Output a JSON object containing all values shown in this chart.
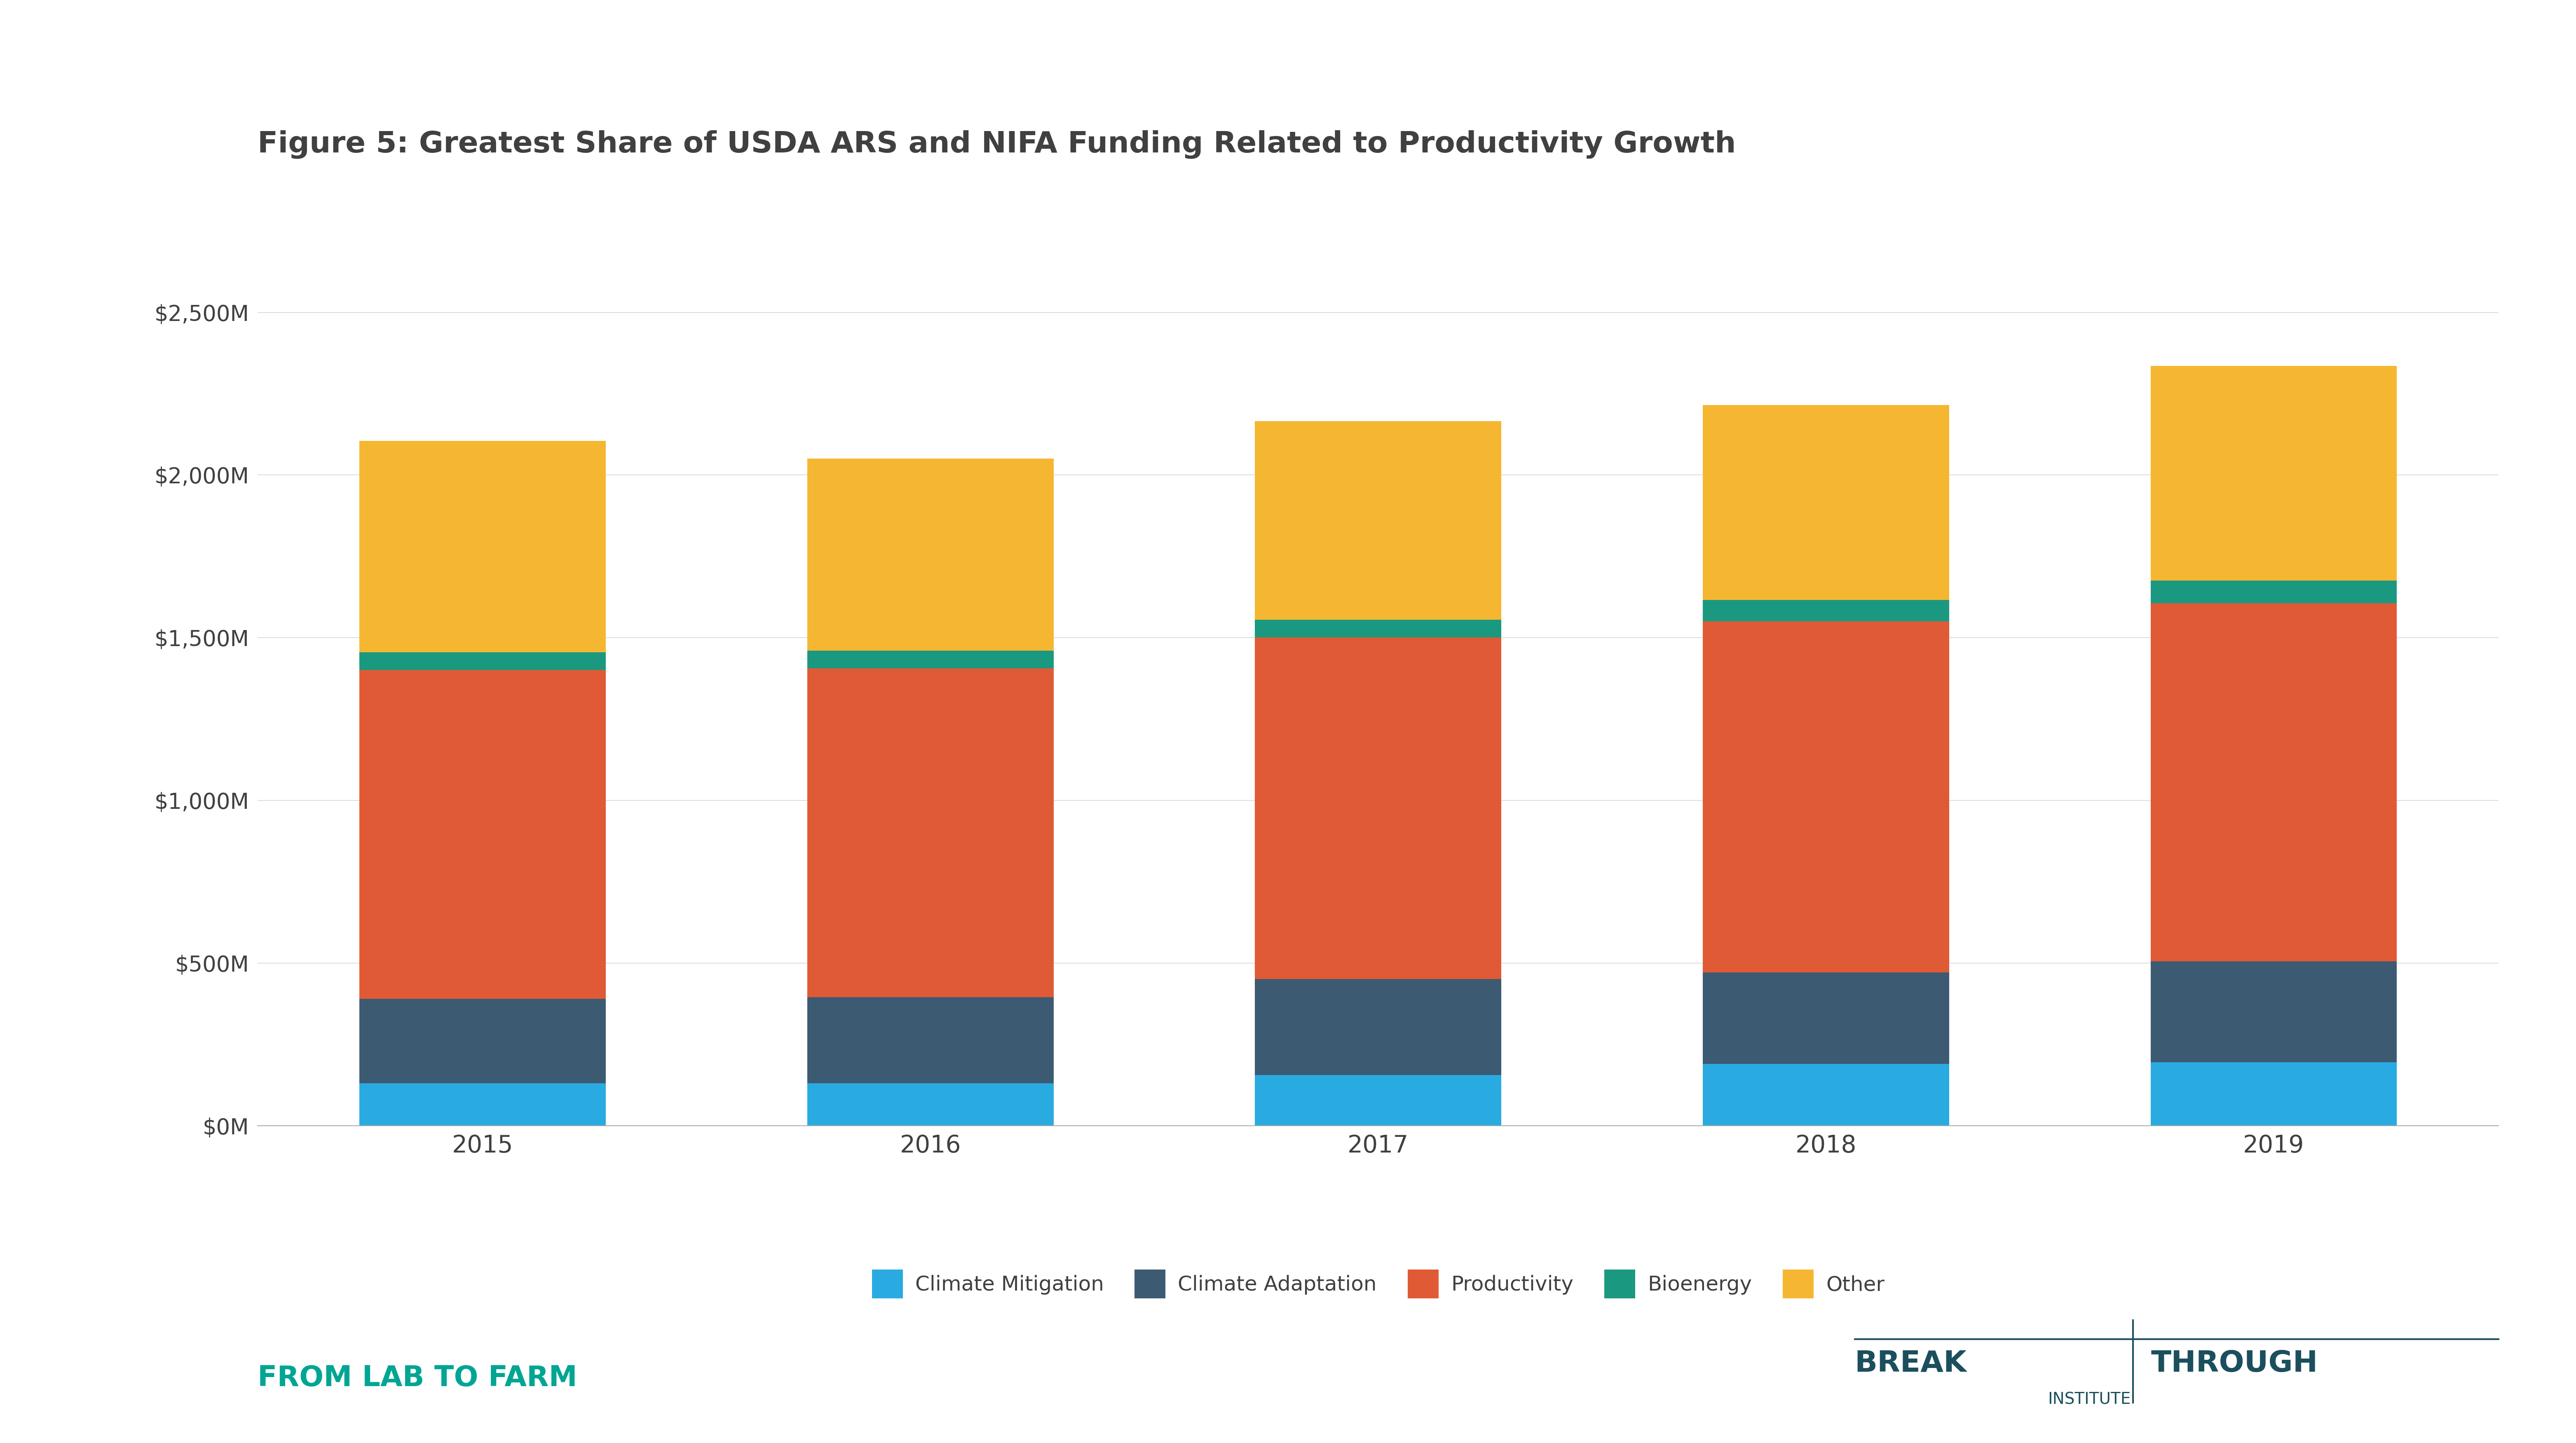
{
  "title": "Figure 5: Greatest Share of USDA ARS and NIFA Funding Related to Productivity Growth",
  "categories": [
    "2015",
    "2016",
    "2017",
    "2018",
    "2019"
  ],
  "series": {
    "Climate Mitigation": [
      130,
      130,
      155,
      190,
      195
    ],
    "Climate Adaptation": [
      260,
      265,
      295,
      280,
      310
    ],
    "Productivity": [
      1010,
      1010,
      1050,
      1080,
      1100
    ],
    "Bioenergy": [
      55,
      55,
      55,
      65,
      70
    ],
    "Other": [
      650,
      590,
      610,
      600,
      660
    ]
  },
  "colors": {
    "Climate Mitigation": "#29ABE2",
    "Climate Adaptation": "#3D5A73",
    "Productivity": "#E05A35",
    "Bioenergy": "#1A9980",
    "Other": "#F5B731"
  },
  "ylim": [
    0,
    2750000000
  ],
  "yticks": [
    0,
    500000000,
    1000000000,
    1500000000,
    2000000000,
    2500000000
  ],
  "ytick_labels": [
    "$0M",
    "$500M",
    "$1,000M",
    "$1,500M",
    "$2,000M",
    "$2,500M"
  ],
  "background_color": "#FFFFFF",
  "title_fontsize": 52,
  "tick_fontsize": 38,
  "legend_fontsize": 36,
  "bar_width": 0.55,
  "title_color": "#404040",
  "tick_color": "#404040",
  "from_lab_text": "FROM LAB TO FARM",
  "from_lab_color": "#00A693",
  "breakthrough_color": "#1C4F5E"
}
